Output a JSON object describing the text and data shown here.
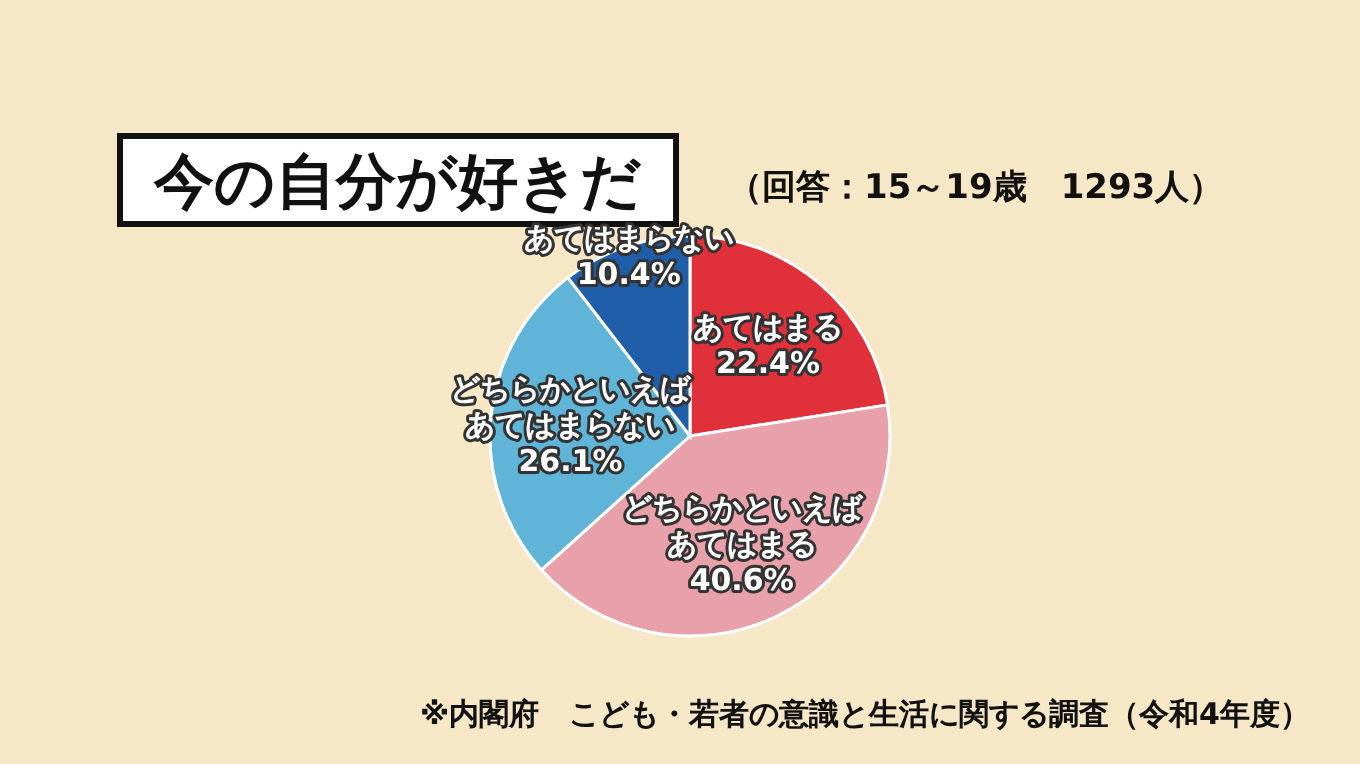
{
  "chart_data": {
    "type": "pie",
    "title": "今の自分が好きだ",
    "subtitle": "（回答：15～19歳　1293人）",
    "categories": [
      "あてはまる",
      "どちらかといえばあてはまる",
      "どちらかといえばあてはまらない",
      "あてはまらない"
    ],
    "values": [
      22.4,
      40.6,
      26.1,
      10.4
    ],
    "value_labels": [
      "22.4%",
      "40.6%",
      "26.1%",
      "10.4%"
    ],
    "colors": [
      "#e0303a",
      "#e8a0aa",
      "#5fb4d8",
      "#1f5ea8"
    ],
    "annotations": [
      "※内閣府　こども・若者の意識と生活に関する調査（令和4年度）"
    ]
  }
}
